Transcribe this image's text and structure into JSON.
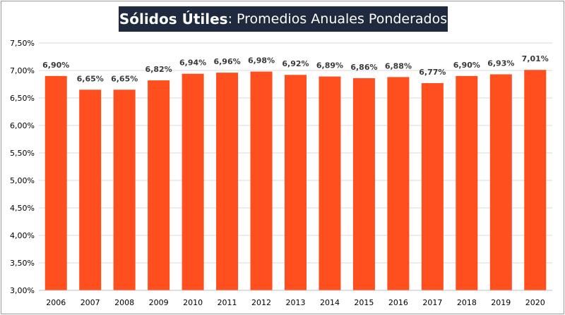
{
  "title": {
    "bold": "Sólidos Útiles",
    "normal": ": Promedios Anuales Ponderados"
  },
  "chart_data": {
    "type": "bar",
    "title": "Sólidos Útiles: Promedios Anuales Ponderados",
    "xlabel": "",
    "ylabel": "",
    "categories": [
      "2006",
      "2007",
      "2008",
      "2009",
      "2010",
      "2011",
      "2012",
      "2013",
      "2014",
      "2015",
      "2016",
      "2017",
      "2018",
      "2019",
      "2020"
    ],
    "values": [
      6.9,
      6.65,
      6.65,
      6.82,
      6.94,
      6.96,
      6.98,
      6.92,
      6.89,
      6.86,
      6.88,
      6.77,
      6.9,
      6.93,
      7.01
    ],
    "value_labels": [
      "6,90%",
      "6,65%",
      "6,65%",
      "6,82%",
      "6,94%",
      "6,96%",
      "6,98%",
      "6,92%",
      "6,89%",
      "6,86%",
      "6,88%",
      "6,77%",
      "6,90%",
      "6,93%",
      "7,01%"
    ],
    "ylim": [
      3.0,
      7.5
    ],
    "y_ticks": [
      3.0,
      3.5,
      4.0,
      4.5,
      5.0,
      5.5,
      6.0,
      6.5,
      7.0,
      7.5
    ],
    "y_tick_labels": [
      "3,00%",
      "3,50%",
      "4,00%",
      "4,50%",
      "5,00%",
      "5,50%",
      "6,00%",
      "6,50%",
      "7,00%",
      "7,50%"
    ],
    "grid": true,
    "legend": "none",
    "bar_color": "#ff4f1f",
    "grid_color": "#d9d9d9"
  }
}
